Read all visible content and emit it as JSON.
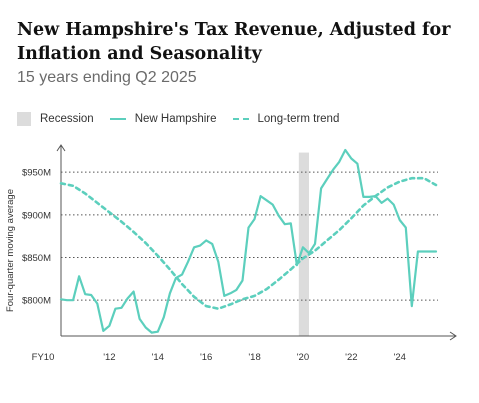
{
  "chart_data": {
    "type": "line",
    "title": "New Hampshire's Tax Revenue, Adjusted for Inflation and Seasonality",
    "subtitle": "15 years ending Q2 2025",
    "ylabel": "Four-quarter moving average",
    "xlabel": "",
    "x_tick_labels": [
      "FY10",
      "'12",
      "'14",
      "'16",
      "'18",
      "'20",
      "'22",
      "'24"
    ],
    "y_tick_labels": [
      "$800M",
      "$850M",
      "$900M",
      "$950M"
    ],
    "y_ticks": [
      800,
      850,
      900,
      950
    ],
    "ylim": [
      758,
      976
    ],
    "xlim": [
      2010.0,
      2025.5
    ],
    "grid": "horizontal dotted",
    "legend": {
      "placement": "top-left",
      "recession_label": "Recession",
      "series_label": "New Hampshire",
      "trend_label": "Long-term trend"
    },
    "colors": {
      "series": "#5ccfbd",
      "recession": "#dcdcdc",
      "grid": "#555555",
      "axis": "#555555"
    },
    "recession": {
      "start": 2019.83,
      "end": 2020.25
    },
    "series": [
      {
        "name": "New Hampshire",
        "style": "solid",
        "x": [
          2010.0,
          2010.25,
          2010.5,
          2010.75,
          2011.0,
          2011.25,
          2011.5,
          2011.75,
          2012.0,
          2012.25,
          2012.5,
          2012.75,
          2013.0,
          2013.25,
          2013.5,
          2013.75,
          2014.0,
          2014.25,
          2014.5,
          2014.75,
          2015.0,
          2015.25,
          2015.5,
          2015.75,
          2016.0,
          2016.25,
          2016.5,
          2016.75,
          2017.0,
          2017.25,
          2017.5,
          2017.75,
          2018.0,
          2018.25,
          2018.5,
          2018.75,
          2019.0,
          2019.25,
          2019.5,
          2019.75,
          2020.0,
          2020.25,
          2020.5,
          2020.75,
          2021.0,
          2021.25,
          2021.5,
          2021.75,
          2022.0,
          2022.25,
          2022.5,
          2022.75,
          2023.0,
          2023.25,
          2023.5,
          2023.75,
          2024.0,
          2024.25,
          2024.5,
          2024.75,
          2025.0,
          2025.25,
          2025.5
        ],
        "y": [
          801,
          800,
          800,
          828,
          807,
          806,
          796,
          764,
          770,
          790,
          791,
          802,
          810,
          778,
          768,
          762,
          763,
          780,
          808,
          826,
          830,
          845,
          862,
          864,
          870,
          866,
          845,
          805,
          808,
          812,
          823,
          885,
          895,
          922,
          917,
          912,
          899,
          889,
          890,
          841,
          862,
          855,
          866,
          931,
          942,
          953,
          962,
          976,
          966,
          960,
          921,
          921,
          922,
          914,
          919,
          912,
          894,
          885,
          793,
          857,
          857,
          857,
          857
        ]
      },
      {
        "name": "Long-term trend",
        "style": "dashed",
        "x": [
          2010.0,
          2010.5,
          2011.0,
          2011.5,
          2012.0,
          2012.5,
          2013.0,
          2013.5,
          2014.0,
          2014.5,
          2015.0,
          2015.5,
          2016.0,
          2016.5,
          2017.0,
          2017.5,
          2018.0,
          2018.5,
          2019.0,
          2019.5,
          2020.0,
          2020.5,
          2021.0,
          2021.5,
          2022.0,
          2022.5,
          2023.0,
          2023.5,
          2024.0,
          2024.5,
          2025.0,
          2025.25,
          2025.5
        ],
        "y": [
          937,
          934,
          925,
          914,
          903,
          892,
          880,
          867,
          852,
          836,
          819,
          804,
          793,
          790,
          795,
          801,
          805,
          813,
          824,
          836,
          849,
          858,
          870,
          882,
          896,
          911,
          922,
          932,
          939,
          943,
          943,
          939,
          935
        ]
      }
    ]
  }
}
